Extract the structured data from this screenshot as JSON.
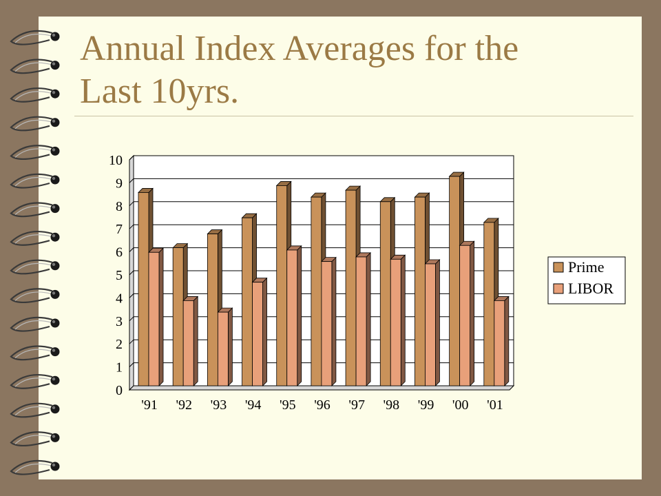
{
  "slide": {
    "title_line1": "Annual Index Averages for the",
    "title_line2": "Last 10yrs."
  },
  "colors": {
    "frame": "#8b7660",
    "page": "#fdfde8",
    "title": "#9b7a45",
    "prime": "#c9925a",
    "libor": "#e8a07a"
  },
  "binding": {
    "icon": "spiral-binding-icon"
  },
  "chart_data": {
    "type": "bar",
    "title": "",
    "xlabel": "",
    "ylabel": "",
    "ylim": [
      0,
      10
    ],
    "yticks": [
      0,
      1,
      2,
      3,
      4,
      5,
      6,
      7,
      8,
      9,
      10
    ],
    "grid": "horizontal",
    "legend_position": "right",
    "categories": [
      "'91",
      "'92",
      "'93",
      "'94",
      "'95",
      "'96",
      "'97",
      "'98",
      "'99",
      "'00",
      "'01"
    ],
    "series": [
      {
        "name": "Prime",
        "values": [
          8.4,
          6.0,
          6.6,
          7.3,
          8.7,
          8.2,
          8.5,
          8.0,
          8.2,
          9.1,
          7.1
        ]
      },
      {
        "name": "LIBOR",
        "values": [
          5.8,
          3.7,
          3.2,
          4.5,
          5.9,
          5.4,
          5.6,
          5.5,
          5.3,
          6.1,
          3.7
        ]
      }
    ]
  }
}
